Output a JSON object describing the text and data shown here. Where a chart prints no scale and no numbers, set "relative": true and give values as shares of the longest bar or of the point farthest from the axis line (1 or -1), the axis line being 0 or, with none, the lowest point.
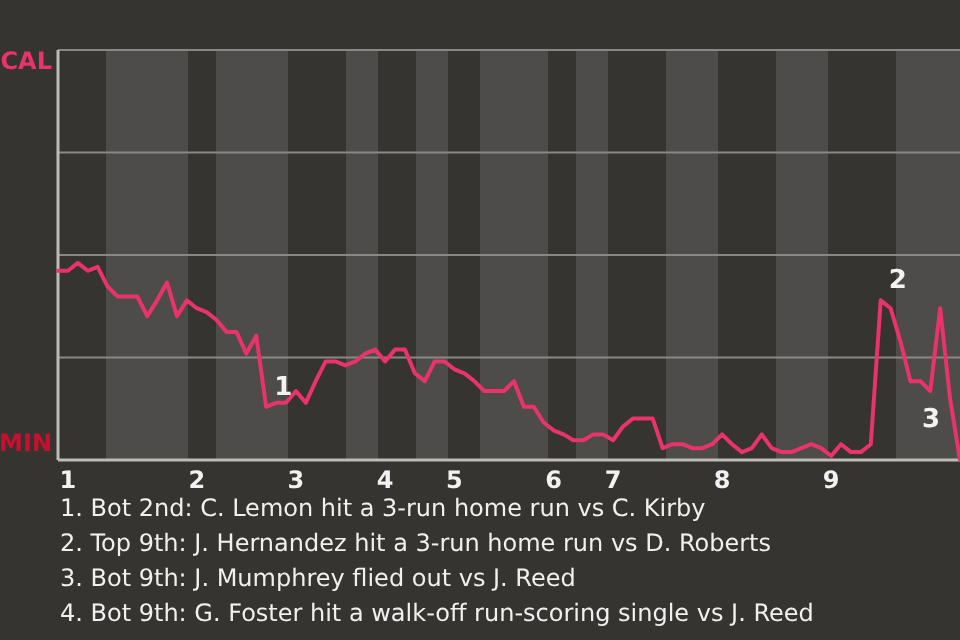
{
  "chart_data": {
    "type": "line",
    "relative": true,
    "categories": [
      null,
      "1",
      null,
      null,
      null,
      null,
      null,
      null,
      null,
      null,
      null,
      null,
      null,
      null,
      "2",
      null,
      null,
      null,
      null,
      null,
      null,
      null,
      null,
      null,
      "3",
      null,
      null,
      null,
      null,
      null,
      null,
      null,
      null,
      "4",
      null,
      null,
      null,
      null,
      null,
      null,
      "5",
      null,
      null,
      null,
      null,
      null,
      null,
      null,
      null,
      null,
      "6",
      null,
      null,
      null,
      null,
      null,
      "7",
      null,
      null,
      null,
      null,
      null,
      null,
      null,
      null,
      null,
      null,
      "8",
      null,
      null,
      null,
      null,
      null,
      null,
      null,
      null,
      null,
      null,
      "9",
      null,
      null,
      null,
      null,
      null,
      null,
      null,
      null,
      null,
      null,
      null,
      null,
      null
    ],
    "series": [
      {
        "color": "#e8336b",
        "values": [
          0.96,
          0.96,
          1,
          0.96,
          0.98,
          0.88,
          0.83,
          0.83,
          0.83,
          0.73,
          0.81,
          0.9,
          0.73,
          0.81,
          0.77,
          0.75,
          0.71,
          0.65,
          0.65,
          0.54,
          0.63,
          0.27,
          0.29,
          0.29,
          0.35,
          0.29,
          0.4,
          0.5,
          0.5,
          0.48,
          0.5,
          0.54,
          0.56,
          0.5,
          0.56,
          0.56,
          0.44,
          0.4,
          0.5,
          0.5,
          0.46,
          0.44,
          0.4,
          0.35,
          0.35,
          0.35,
          0.4,
          0.27,
          0.27,
          0.19,
          0.15,
          0.13,
          0.1,
          0.1,
          0.13,
          0.13,
          0.1,
          0.17,
          0.21,
          0.21,
          0.21,
          0.06,
          0.08,
          0.08,
          0.06,
          0.06,
          0.08,
          0.13,
          0.08,
          0.04,
          0.06,
          0.13,
          0.06,
          0.04,
          0.04,
          0.06,
          0.08,
          0.06,
          0.02,
          0.08,
          0.04,
          0.04,
          0.08,
          0.81,
          0.77,
          0.6,
          0.4,
          0.4,
          0.35,
          0.77,
          0.31,
          0
        ]
      }
    ],
    "marker": "none",
    "line_style": "solid",
    "ref_lines": [
      {
        "axis": "y",
        "value": 0.52,
        "color": "#8a8885"
      },
      {
        "axis": "y",
        "value": 1.04,
        "color": "#8a8885"
      },
      {
        "axis": "y",
        "value": 1.56,
        "color": "#8a8885"
      },
      {
        "axis": "y",
        "value": 2.08,
        "color": "#8a8885"
      }
    ],
    "annotations": [
      {
        "text": "1",
        "y": 0.27
      },
      {
        "text": "2",
        "y": 0.81
      },
      {
        "text": "3",
        "y": 0.31
      },
      "CAL",
      "MIN",
      "1. Bot 2nd: C. Lemon hit a 3-run home run vs C. Kirby",
      "2. Top 9th: J. Hernandez hit a 3-run home run vs D. Roberts",
      "3. Bot 9th: J. Mumphrey flied out vs J. Reed",
      "4. Bot 9th: G. Foster hit a walk-off run-scoring single vs J. Reed"
    ]
  }
}
